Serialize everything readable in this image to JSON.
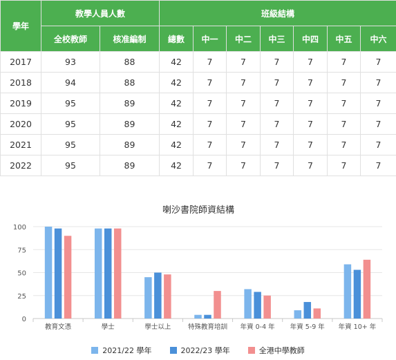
{
  "table": {
    "year_header": "學年",
    "group_headers": [
      "教學人員人數",
      "班級結構"
    ],
    "sub_headers": [
      "全校教師",
      "核准編制",
      "總數",
      "中一",
      "中二",
      "中三",
      "中四",
      "中五",
      "中六"
    ],
    "rows": [
      {
        "year": "2017",
        "cells": [
          "93",
          "88",
          "42",
          "7",
          "7",
          "7",
          "7",
          "7",
          "7"
        ]
      },
      {
        "year": "2018",
        "cells": [
          "94",
          "88",
          "42",
          "7",
          "7",
          "7",
          "7",
          "7",
          "7"
        ]
      },
      {
        "year": "2019",
        "cells": [
          "95",
          "89",
          "42",
          "7",
          "7",
          "7",
          "7",
          "7",
          "7"
        ]
      },
      {
        "year": "2020",
        "cells": [
          "95",
          "89",
          "42",
          "7",
          "7",
          "7",
          "7",
          "7",
          "7"
        ]
      },
      {
        "year": "2021",
        "cells": [
          "95",
          "89",
          "42",
          "7",
          "7",
          "7",
          "7",
          "7",
          "7"
        ]
      },
      {
        "year": "2022",
        "cells": [
          "95",
          "89",
          "42",
          "7",
          "7",
          "7",
          "7",
          "7",
          "7"
        ]
      }
    ]
  },
  "chart_data": {
    "type": "bar",
    "title": "喇沙書院師資結構",
    "categories": [
      "教育文憑",
      "學士",
      "學士以上",
      "特殊教育培訓",
      "年資 0-4 年",
      "年資 5-9 年",
      "年資 10+ 年"
    ],
    "series": [
      {
        "name": "2021/22 學年",
        "color": "#7cb5ec",
        "values": [
          100,
          98,
          45,
          4,
          32,
          9,
          59
        ]
      },
      {
        "name": "2022/23 學年",
        "color": "#4a90d9",
        "values": [
          98,
          98,
          50,
          4,
          29,
          18,
          53
        ]
      },
      {
        "name": "全港中學教師",
        "color": "#f28f8f",
        "values": [
          90,
          98,
          48,
          30,
          25,
          11,
          64
        ]
      }
    ],
    "yticks": [
      "0",
      "25",
      "50",
      "75",
      "100"
    ],
    "ylim": [
      0,
      100
    ],
    "grid": true,
    "legend_position": "bottom"
  }
}
